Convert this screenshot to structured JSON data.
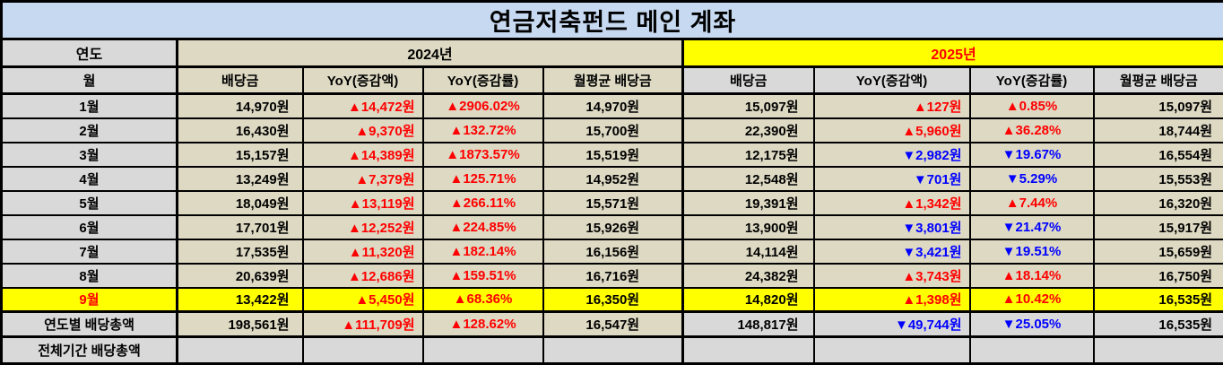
{
  "title": "연금저축펀드 메인 계좌",
  "colors": {
    "title_bg": "#c6d9f1",
    "cell_beige": "#ddd9c3",
    "cell_gray": "#d9d9d9",
    "highlight_yellow": "#ffff00",
    "up_red": "#ff0000",
    "down_blue": "#0000ff"
  },
  "header": {
    "year_label": "연도",
    "month_label": "월",
    "year_2024": "2024년",
    "year_2025": "2025년",
    "columns_2024": [
      "배당금",
      "YoY(증감액)",
      "YoY(증감률)",
      "월평균 배당금"
    ],
    "columns_2025": [
      "배당금",
      "YoY(증감액)",
      "YoY(증감률)",
      "월평균 배당금"
    ]
  },
  "rows": [
    {
      "label": "1월",
      "cells": [
        "14,970원",
        "▲14,472원",
        "▲2906.02%",
        "14,970원",
        "15,097원",
        "▲127원",
        "▲0.85%",
        "15,097원"
      ]
    },
    {
      "label": "2월",
      "cells": [
        "16,430원",
        "▲9,370원",
        "▲132.72%",
        "15,700원",
        "22,390원",
        "▲5,960원",
        "▲36.28%",
        "18,744원"
      ]
    },
    {
      "label": "3월",
      "cells": [
        "15,157원",
        "▲14,389원",
        "▲1873.57%",
        "15,519원",
        "12,175원",
        "▼2,982원",
        "▼19.67%",
        "16,554원"
      ]
    },
    {
      "label": "4월",
      "cells": [
        "13,249원",
        "▲7,379원",
        "▲125.71%",
        "14,952원",
        "12,548원",
        "▼701원",
        "▼5.29%",
        "15,553원"
      ]
    },
    {
      "label": "5월",
      "cells": [
        "18,049원",
        "▲13,119원",
        "▲266.11%",
        "15,571원",
        "19,391원",
        "▲1,342원",
        "▲7.44%",
        "16,320원"
      ]
    },
    {
      "label": "6월",
      "cells": [
        "17,701원",
        "▲12,252원",
        "▲224.85%",
        "15,926원",
        "13,900원",
        "▼3,801원",
        "▼21.47%",
        "15,917원"
      ]
    },
    {
      "label": "7월",
      "cells": [
        "17,535원",
        "▲11,320원",
        "▲182.14%",
        "16,156원",
        "14,114원",
        "▼3,421원",
        "▼19.51%",
        "15,659원"
      ]
    },
    {
      "label": "8월",
      "cells": [
        "20,639원",
        "▲12,686원",
        "▲159.51%",
        "16,716원",
        "24,382원",
        "▲3,743원",
        "▲18.14%",
        "16,750원"
      ]
    },
    {
      "label": "9월",
      "cells": [
        "13,422원",
        "▲5,450원",
        "▲68.36%",
        "16,350원",
        "14,820원",
        "▲1,398원",
        "▲10.42%",
        "16,535원"
      ]
    }
  ],
  "yearly_total": {
    "label": "연도별 배당총액",
    "cells": [
      "198,561원",
      "▲111,709원",
      "▲128.62%",
      "16,547원",
      "148,817원",
      "▼49,744원",
      "▼25.05%",
      "16,535원"
    ]
  },
  "period_total": {
    "label": "전체기간 배당총액",
    "cells": [
      "",
      "",
      "",
      "",
      "",
      "",
      "",
      ""
    ]
  }
}
